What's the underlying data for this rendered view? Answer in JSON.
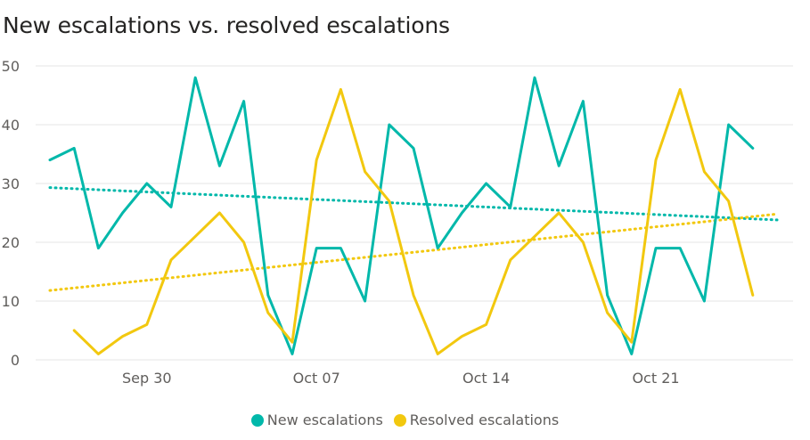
{
  "chart_data": {
    "type": "line",
    "title": "New escalations vs. resolved escalations",
    "xlabel": "",
    "ylabel": "",
    "ylim": [
      0,
      50
    ],
    "yticks": [
      0,
      10,
      20,
      30,
      40,
      50
    ],
    "x_ticks": [
      {
        "label": "Sep 30",
        "date": "2019-09-30"
      },
      {
        "label": "Oct 07",
        "date": "2019-10-07"
      },
      {
        "label": "Oct 14",
        "date": "2019-10-14"
      },
      {
        "label": "Oct 21",
        "date": "2019-10-21"
      }
    ],
    "x": [
      "2019-09-26",
      "2019-09-27",
      "2019-09-28",
      "2019-09-29",
      "2019-09-30",
      "2019-10-01",
      "2019-10-02",
      "2019-10-03",
      "2019-10-04",
      "2019-10-05",
      "2019-10-06",
      "2019-10-07",
      "2019-10-08",
      "2019-10-09",
      "2019-10-10",
      "2019-10-11",
      "2019-10-12",
      "2019-10-13",
      "2019-10-14",
      "2019-10-15",
      "2019-10-16",
      "2019-10-17",
      "2019-10-18",
      "2019-10-19",
      "2019-10-20",
      "2019-10-21",
      "2019-10-22",
      "2019-10-23",
      "2019-10-24",
      "2019-10-25",
      "2019-10-26"
    ],
    "grid": true,
    "legend": "bottom-center",
    "series": [
      {
        "name": "New escalations",
        "color": "#01B8AA",
        "values": [
          34,
          36,
          19,
          25,
          30,
          26,
          48,
          33,
          44,
          11,
          1,
          19,
          19,
          10,
          40,
          36,
          19,
          25,
          30,
          26,
          48,
          33,
          44,
          11,
          1,
          19,
          19,
          10,
          40,
          36,
          null
        ],
        "trend": [
          29.3,
          23.8
        ]
      },
      {
        "name": "Resolved escalations",
        "color": "#F2C80F",
        "values": [
          null,
          5,
          1,
          4,
          6,
          17,
          21,
          25,
          20,
          8,
          3,
          34,
          46,
          32,
          27,
          11,
          1,
          4,
          6,
          17,
          21,
          25,
          20,
          8,
          3,
          34,
          46,
          32,
          27,
          11,
          null
        ],
        "trend": [
          11.8,
          24.8
        ]
      }
    ]
  }
}
